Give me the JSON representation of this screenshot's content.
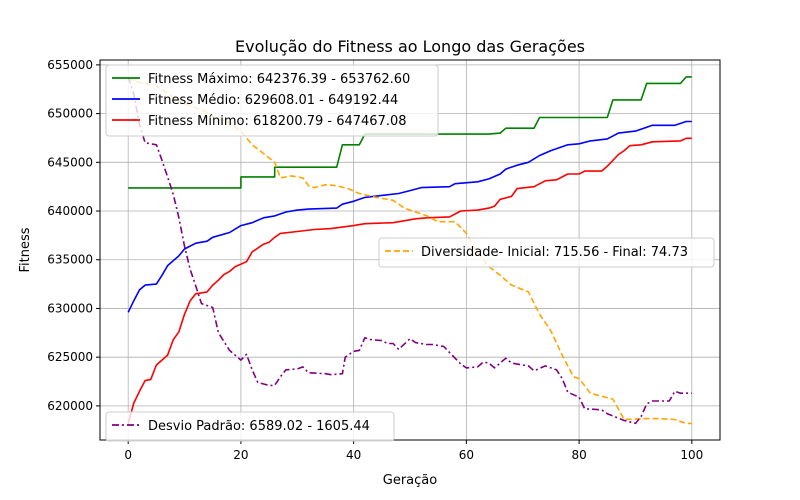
{
  "chart_data": {
    "type": "line",
    "title": "Evolução do Fitness ao Longo das Gerações",
    "xlabel": "Geração",
    "ylabel": "Fitness",
    "xlim": [
      -5,
      105
    ],
    "ylim": [
      616500,
      655500
    ],
    "grid": true,
    "x_ticks": [
      0,
      20,
      40,
      60,
      80,
      100
    ],
    "y_ticks": [
      620000,
      625000,
      630000,
      635000,
      640000,
      645000,
      650000,
      655000
    ],
    "x_tick_labels": [
      "0",
      "20",
      "40",
      "60",
      "80",
      "100"
    ],
    "y_tick_labels": [
      "620000",
      "625000",
      "630000",
      "635000",
      "640000",
      "645000",
      "650000",
      "655000"
    ],
    "series": [
      {
        "name": "Fitness Máximo: 642376.39 - 653762.60",
        "color": "#008000",
        "style": "solid",
        "legend": "top-left",
        "points": [
          [
            0,
            642376
          ],
          [
            20,
            642376
          ],
          [
            20,
            643500
          ],
          [
            26,
            643500
          ],
          [
            26,
            644500
          ],
          [
            37,
            644500
          ],
          [
            38,
            646800
          ],
          [
            41,
            646800
          ],
          [
            42,
            647900
          ],
          [
            64,
            647900
          ],
          [
            66,
            648000
          ],
          [
            67,
            648500
          ],
          [
            72,
            648500
          ],
          [
            73,
            649600
          ],
          [
            85,
            649600
          ],
          [
            86,
            651400
          ],
          [
            91,
            651400
          ],
          [
            92,
            653100
          ],
          [
            98,
            653100
          ],
          [
            99,
            653762
          ],
          [
            100,
            653762
          ]
        ]
      },
      {
        "name": "Fitness Médio: 629608.01 - 649192.44",
        "color": "#0000ff",
        "style": "solid",
        "legend": "top-left",
        "points": [
          [
            0,
            629608
          ],
          [
            1,
            630800
          ],
          [
            2,
            631900
          ],
          [
            3,
            632400
          ],
          [
            5,
            632500
          ],
          [
            6,
            633400
          ],
          [
            7,
            634400
          ],
          [
            9,
            635400
          ],
          [
            10,
            636100
          ],
          [
            12,
            636700
          ],
          [
            14,
            636900
          ],
          [
            15,
            637300
          ],
          [
            18,
            637800
          ],
          [
            20,
            638500
          ],
          [
            22,
            638800
          ],
          [
            24,
            639300
          ],
          [
            26,
            639500
          ],
          [
            28,
            639900
          ],
          [
            30,
            640100
          ],
          [
            32,
            640200
          ],
          [
            37,
            640300
          ],
          [
            38,
            640700
          ],
          [
            40,
            641000
          ],
          [
            42,
            641400
          ],
          [
            45,
            641600
          ],
          [
            48,
            641800
          ],
          [
            50,
            642100
          ],
          [
            52,
            642400
          ],
          [
            57,
            642500
          ],
          [
            58,
            642800
          ],
          [
            62,
            643000
          ],
          [
            64,
            643300
          ],
          [
            66,
            643800
          ],
          [
            67,
            644300
          ],
          [
            69,
            644700
          ],
          [
            71,
            645000
          ],
          [
            73,
            645700
          ],
          [
            75,
            646200
          ],
          [
            78,
            646800
          ],
          [
            80,
            646900
          ],
          [
            82,
            647200
          ],
          [
            85,
            647400
          ],
          [
            87,
            648000
          ],
          [
            90,
            648200
          ],
          [
            93,
            648800
          ],
          [
            97,
            648800
          ],
          [
            99,
            649192
          ],
          [
            100,
            649192
          ]
        ]
      },
      {
        "name": "Fitness Mínimo: 618200.79 - 647467.08",
        "color": "#ff0000",
        "style": "solid",
        "legend": "top-left",
        "points": [
          [
            0,
            618200
          ],
          [
            1,
            620300
          ],
          [
            2,
            621500
          ],
          [
            3,
            622600
          ],
          [
            4,
            622700
          ],
          [
            5,
            624200
          ],
          [
            6,
            624700
          ],
          [
            7,
            625200
          ],
          [
            8,
            626800
          ],
          [
            9,
            627600
          ],
          [
            10,
            629400
          ],
          [
            11,
            630800
          ],
          [
            12,
            631500
          ],
          [
            14,
            631700
          ],
          [
            15,
            632400
          ],
          [
            16,
            632900
          ],
          [
            17,
            633500
          ],
          [
            18,
            633800
          ],
          [
            19,
            634300
          ],
          [
            21,
            634800
          ],
          [
            22,
            635800
          ],
          [
            24,
            636600
          ],
          [
            25,
            636800
          ],
          [
            26,
            637300
          ],
          [
            27,
            637700
          ],
          [
            30,
            637900
          ],
          [
            33,
            638100
          ],
          [
            36,
            638200
          ],
          [
            40,
            638500
          ],
          [
            42,
            638700
          ],
          [
            47,
            638800
          ],
          [
            51,
            639200
          ],
          [
            53,
            639300
          ],
          [
            57,
            639400
          ],
          [
            59,
            640000
          ],
          [
            62,
            640100
          ],
          [
            64,
            640300
          ],
          [
            65,
            640500
          ],
          [
            66,
            641200
          ],
          [
            68,
            641500
          ],
          [
            69,
            642300
          ],
          [
            72,
            642500
          ],
          [
            74,
            643100
          ],
          [
            76,
            643200
          ],
          [
            78,
            643800
          ],
          [
            80,
            643800
          ],
          [
            81,
            644100
          ],
          [
            84,
            644100
          ],
          [
            85,
            644600
          ],
          [
            87,
            645800
          ],
          [
            88,
            646200
          ],
          [
            89,
            646700
          ],
          [
            91,
            646800
          ],
          [
            93,
            647100
          ],
          [
            98,
            647200
          ],
          [
            99,
            647467
          ],
          [
            100,
            647467
          ]
        ]
      },
      {
        "name": "Diversidade- Inicial: 715.56 - Final: 74.73",
        "color": "#ffa500",
        "style": "dashed",
        "legend": "center-right",
        "points": [
          [
            0,
            653600
          ],
          [
            2,
            653200
          ],
          [
            5,
            652800
          ],
          [
            8,
            651700
          ],
          [
            10,
            651000
          ],
          [
            13,
            650400
          ],
          [
            14,
            650100
          ],
          [
            16,
            649400
          ],
          [
            17,
            649300
          ],
          [
            18,
            649000
          ],
          [
            20,
            648200
          ],
          [
            22,
            646800
          ],
          [
            24,
            645900
          ],
          [
            26,
            645000
          ],
          [
            27,
            643400
          ],
          [
            29,
            643600
          ],
          [
            31,
            643400
          ],
          [
            32,
            642600
          ],
          [
            33,
            642400
          ],
          [
            35,
            642700
          ],
          [
            37,
            642600
          ],
          [
            39,
            642300
          ],
          [
            41,
            641800
          ],
          [
            44,
            641400
          ],
          [
            47,
            641100
          ],
          [
            49,
            640300
          ],
          [
            51,
            639900
          ],
          [
            53,
            639500
          ],
          [
            55,
            638900
          ],
          [
            58,
            638900
          ],
          [
            60,
            637700
          ],
          [
            62,
            635700
          ],
          [
            64,
            634300
          ],
          [
            66,
            633400
          ],
          [
            68,
            632400
          ],
          [
            71,
            631700
          ],
          [
            73,
            629400
          ],
          [
            75,
            627700
          ],
          [
            77,
            625200
          ],
          [
            79,
            623000
          ],
          [
            80,
            622800
          ],
          [
            82,
            621300
          ],
          [
            86,
            620700
          ],
          [
            88,
            618600
          ],
          [
            92,
            618700
          ],
          [
            94,
            618700
          ],
          [
            97,
            618600
          ],
          [
            99,
            618200
          ],
          [
            100,
            618200
          ]
        ]
      },
      {
        "name": "Desvio Padrão: 6589.02 - 1605.44",
        "color": "#800080",
        "style": "dashdot",
        "legend": "bottom-left",
        "points": [
          [
            0,
            653762
          ],
          [
            1,
            652000
          ],
          [
            2,
            648900
          ],
          [
            3,
            647000
          ],
          [
            5,
            646800
          ],
          [
            6,
            645200
          ],
          [
            7,
            643500
          ],
          [
            8,
            641700
          ],
          [
            9,
            639300
          ],
          [
            10,
            636400
          ],
          [
            11,
            634000
          ],
          [
            12,
            632300
          ],
          [
            13,
            630500
          ],
          [
            15,
            630100
          ],
          [
            16,
            627500
          ],
          [
            18,
            625700
          ],
          [
            20,
            624700
          ],
          [
            21,
            625300
          ],
          [
            22,
            623700
          ],
          [
            23,
            622400
          ],
          [
            25,
            622100
          ],
          [
            26,
            622100
          ],
          [
            27,
            623000
          ],
          [
            28,
            623700
          ],
          [
            30,
            623800
          ],
          [
            31,
            624000
          ],
          [
            32,
            623400
          ],
          [
            35,
            623300
          ],
          [
            36,
            623200
          ],
          [
            38,
            623300
          ],
          [
            38.5,
            625000
          ],
          [
            40,
            625600
          ],
          [
            41,
            625700
          ],
          [
            42,
            627000
          ],
          [
            43,
            626800
          ],
          [
            45,
            626700
          ],
          [
            46,
            626400
          ],
          [
            47,
            626400
          ],
          [
            48,
            625800
          ],
          [
            50,
            626900
          ],
          [
            51,
            626500
          ],
          [
            53,
            626300
          ],
          [
            54,
            626300
          ],
          [
            55,
            626200
          ],
          [
            56,
            626100
          ],
          [
            58,
            624900
          ],
          [
            59,
            624300
          ],
          [
            60,
            623900
          ],
          [
            62,
            624000
          ],
          [
            63,
            624500
          ],
          [
            64,
            624400
          ],
          [
            65,
            623900
          ],
          [
            67,
            624900
          ],
          [
            68,
            624400
          ],
          [
            70,
            624200
          ],
          [
            71,
            624100
          ],
          [
            72,
            623600
          ],
          [
            74,
            624100
          ],
          [
            76,
            623700
          ],
          [
            77,
            622800
          ],
          [
            78,
            621400
          ],
          [
            80,
            620900
          ],
          [
            81,
            619700
          ],
          [
            84,
            619600
          ],
          [
            85,
            619200
          ],
          [
            88,
            618500
          ],
          [
            90,
            618200
          ],
          [
            91,
            618900
          ],
          [
            92,
            620200
          ],
          [
            93,
            620500
          ],
          [
            96,
            620500
          ],
          [
            97,
            621500
          ],
          [
            98,
            621300
          ],
          [
            100,
            621300
          ]
        ]
      }
    ]
  }
}
